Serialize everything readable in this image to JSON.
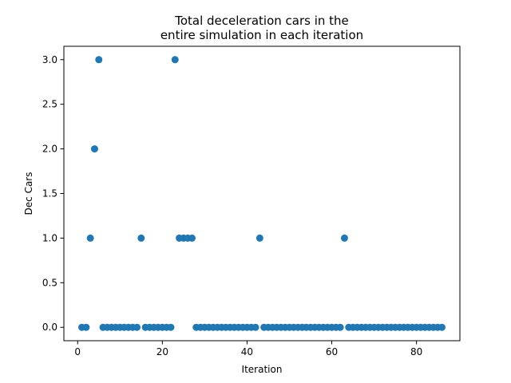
{
  "chart_data": {
    "type": "scatter",
    "title": [
      "Total deceleration cars in the",
      "entire simulation in each iteration"
    ],
    "xlabel": "Iteration",
    "ylabel": "Dec Cars",
    "xlim": [
      -3.25,
      90.25
    ],
    "ylim": [
      -0.15,
      3.15
    ],
    "xticks": [
      0,
      20,
      40,
      60,
      80
    ],
    "yticks": [
      0.0,
      0.5,
      1.0,
      1.5,
      2.0,
      2.5,
      3.0
    ],
    "ytick_labels": [
      "0.0",
      "0.5",
      "1.0",
      "1.5",
      "2.0",
      "2.5",
      "3.0"
    ],
    "marker_color": "#1f77b4",
    "grid": false,
    "series": [
      {
        "x": [
          1,
          2,
          3,
          4,
          5,
          6,
          7,
          8,
          9,
          10,
          11,
          12,
          13,
          14,
          15,
          16,
          17,
          18,
          19,
          20,
          21,
          22,
          23,
          24,
          25,
          26,
          27,
          28,
          29,
          30,
          31,
          32,
          33,
          34,
          35,
          36,
          37,
          38,
          39,
          40,
          41,
          42,
          43,
          44,
          45,
          46,
          47,
          48,
          49,
          50,
          51,
          52,
          53,
          54,
          55,
          56,
          57,
          58,
          59,
          60,
          61,
          62,
          63,
          64,
          65,
          66,
          67,
          68,
          69,
          70,
          71,
          72,
          73,
          74,
          75,
          76,
          77,
          78,
          79,
          80,
          81,
          82,
          83,
          84,
          85,
          86
        ],
        "y": [
          0,
          0,
          1,
          2,
          3,
          0,
          0,
          0,
          0,
          0,
          0,
          0,
          0,
          0,
          1,
          0,
          0,
          0,
          0,
          0,
          0,
          0,
          3,
          1,
          1,
          1,
          1,
          0,
          0,
          0,
          0,
          0,
          0,
          0,
          0,
          0,
          0,
          0,
          0,
          0,
          0,
          0,
          1,
          0,
          0,
          0,
          0,
          0,
          0,
          0,
          0,
          0,
          0,
          0,
          0,
          0,
          0,
          0,
          0,
          0,
          0,
          0,
          1,
          0,
          0,
          0,
          0,
          0,
          0,
          0,
          0,
          0,
          0,
          0,
          0,
          0,
          0,
          0,
          0,
          0,
          0,
          0,
          0,
          0,
          0,
          0
        ]
      }
    ]
  }
}
